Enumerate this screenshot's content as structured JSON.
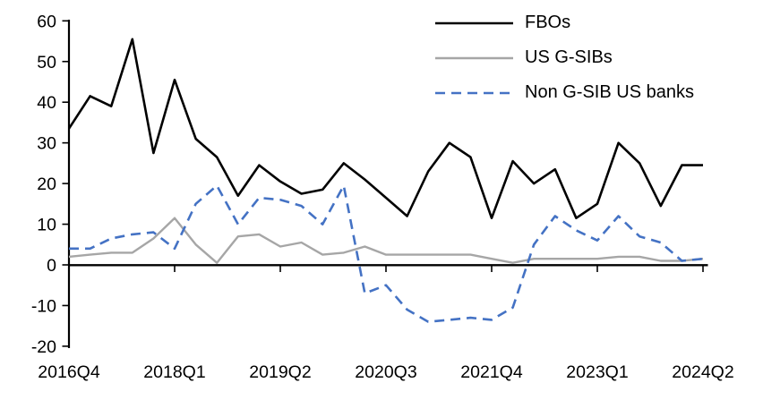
{
  "chart_data": {
    "type": "line",
    "title": "",
    "xlabel": "",
    "ylabel": "",
    "ylim": [
      -20,
      60
    ],
    "grid": false,
    "legend_position": "top-right",
    "y_ticks": [
      60,
      50,
      40,
      30,
      20,
      10,
      0,
      -10,
      -20
    ],
    "x_tick_labels": [
      "2016Q4",
      "2018Q1",
      "2019Q2",
      "2020Q3",
      "2021Q4",
      "2023Q1",
      "2024Q2"
    ],
    "x_tick_indices": [
      0,
      5,
      10,
      15,
      20,
      25,
      30
    ],
    "categories": [
      "2016Q4",
      "2017Q1",
      "2017Q2",
      "2017Q3",
      "2017Q4",
      "2018Q1",
      "2018Q2",
      "2018Q3",
      "2018Q4",
      "2019Q1",
      "2019Q2",
      "2019Q3",
      "2019Q4",
      "2020Q1",
      "2020Q2",
      "2020Q3",
      "2020Q4",
      "2021Q1",
      "2021Q2",
      "2021Q3",
      "2021Q4",
      "2022Q1",
      "2022Q2",
      "2022Q3",
      "2022Q4",
      "2023Q1",
      "2023Q2",
      "2023Q3",
      "2023Q4",
      "2024Q1",
      "2024Q2"
    ],
    "series": [
      {
        "name": "FBOs",
        "color": "#000000",
        "dash": "solid",
        "width": 2.6,
        "values": [
          33.5,
          41.5,
          39,
          55.5,
          27.5,
          45.5,
          31,
          26.5,
          17,
          24.5,
          20.5,
          17.5,
          18.5,
          25,
          21,
          16.5,
          12,
          23,
          30,
          26.5,
          11.5,
          25.5,
          20,
          23.5,
          11.5,
          15,
          30,
          25,
          14.5,
          24.5,
          24.5
        ]
      },
      {
        "name": "US G-SIBs",
        "color": "#a6a6a6",
        "dash": "solid",
        "width": 2.4,
        "values": [
          2,
          2.5,
          3,
          3,
          6.5,
          11.5,
          5,
          0.5,
          7,
          7.5,
          4.5,
          5.5,
          2.5,
          3,
          4.5,
          2.5,
          2.5,
          2.5,
          2.5,
          2.5,
          1.5,
          0.5,
          1.5,
          1.5,
          1.5,
          1.5,
          2,
          2,
          1,
          1,
          1.5
        ]
      },
      {
        "name": "Non G-SIB US banks",
        "color": "#4472c4",
        "dash": "dashed",
        "width": 2.6,
        "values": [
          4,
          4,
          6.5,
          7.5,
          8,
          4,
          15,
          19.5,
          10,
          16.5,
          16,
          14.5,
          10,
          19.5,
          -7,
          -5,
          -11,
          -14,
          -13.5,
          -13,
          -13.5,
          -10.5,
          5,
          12,
          8.5,
          6,
          12,
          7,
          5.5,
          1,
          1.5
        ]
      }
    ]
  }
}
